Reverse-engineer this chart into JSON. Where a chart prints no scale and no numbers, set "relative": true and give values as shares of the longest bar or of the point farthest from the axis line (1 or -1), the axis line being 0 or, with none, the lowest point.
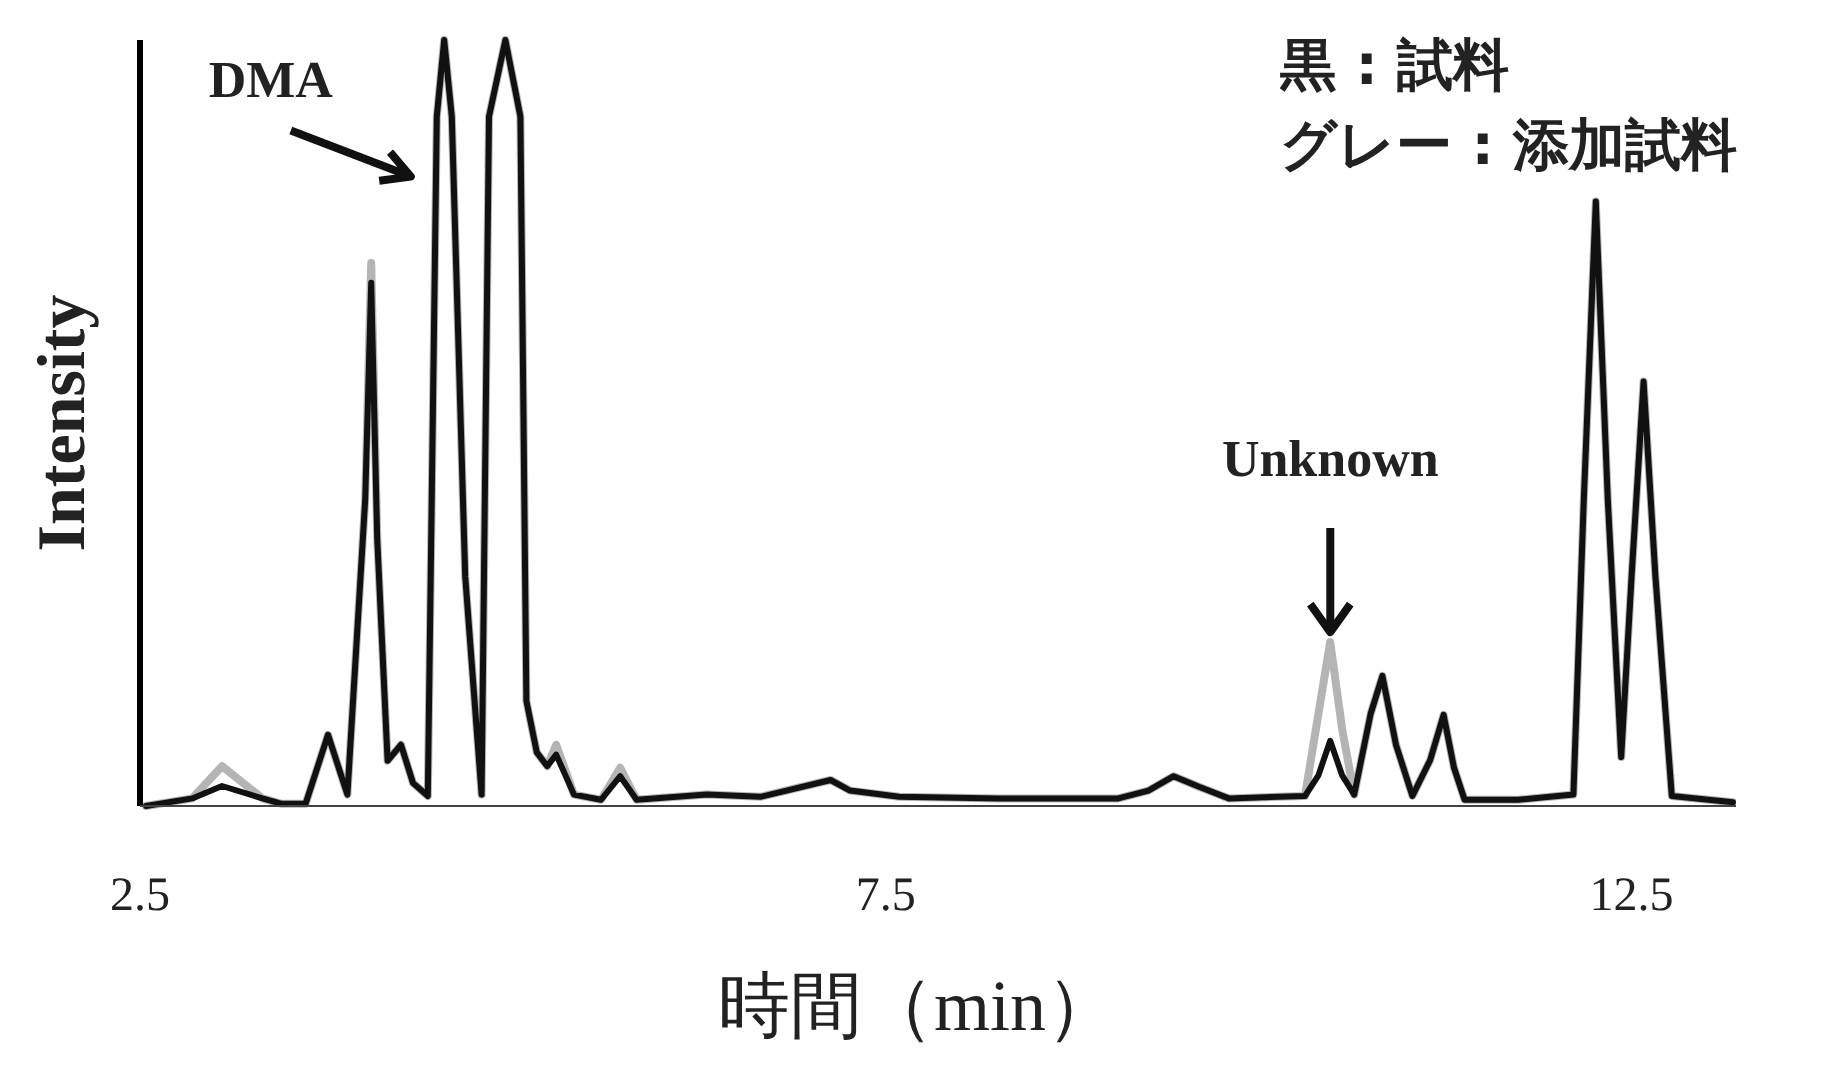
{
  "chart_data": {
    "type": "line",
    "relative": true,
    "xlabel": "時間（min）",
    "ylabel": "Intensity",
    "xlim": [
      2.5,
      13.2
    ],
    "xticks": [
      2.5,
      7.5,
      12.5
    ],
    "tick_labels": "x",
    "line_style": "solid",
    "annotations": [
      {
        "text": "DMA",
        "x": 4.49,
        "y": 0.9
      },
      {
        "text": "Unknown",
        "x": 10.48,
        "y": 0.214
      },
      "黒 : 試料",
      "グレー : 添加試料"
    ],
    "x": [
      2.54,
      2.85,
      3.05,
      3.32,
      3.45,
      3.61,
      3.76,
      3.89,
      4.01,
      4.05,
      4.09,
      4.16,
      4.25,
      4.33,
      4.43,
      4.49,
      4.54,
      4.59,
      4.68,
      4.79,
      4.84,
      4.95,
      5.05,
      5.09,
      5.16,
      5.23,
      5.29,
      5.41,
      5.59,
      5.72,
      5.83,
      6.3,
      6.66,
      7.13,
      7.26,
      7.59,
      8.26,
      9.06,
      9.26,
      9.43,
      9.6,
      9.8,
      10.31,
      10.4,
      10.48,
      10.56,
      10.64,
      10.75,
      10.83,
      10.92,
      11.03,
      11.15,
      11.24,
      11.31,
      11.38,
      11.74,
      12.11,
      12.18,
      12.26,
      12.34,
      12.43,
      12.5,
      12.58,
      12.66,
      12.77,
      13.18
    ],
    "series": [
      {
        "color": "#b4b4b4",
        "values": [
          0,
          0.01,
          0.052,
          0.01,
          0.003,
          0.003,
          0.093,
          0.015,
          0.4,
          0.709,
          0.35,
          0.059,
          0.08,
          0.03,
          0.013,
          0.9,
          1,
          0.9,
          0.3,
          0.015,
          0.9,
          1,
          0.9,
          0.137,
          0.07,
          0.052,
          0.08,
          0.015,
          0.008,
          0.05,
          0.008,
          0.015,
          0.012,
          0.034,
          0.02,
          0.012,
          0.01,
          0.01,
          0.02,
          0.039,
          0.025,
          0.01,
          0.013,
          0.12,
          0.214,
          0.1,
          0.015,
          0.12,
          0.17,
          0.08,
          0.013,
          0.06,
          0.119,
          0.05,
          0.008,
          0.008,
          0.015,
          0.4,
          0.789,
          0.4,
          0.064,
          0.3,
          0.554,
          0.3,
          0.013,
          0.005
        ]
      },
      {
        "color": "#111111",
        "values": [
          0,
          0.01,
          0.026,
          0.01,
          0.003,
          0.003,
          0.093,
          0.015,
          0.4,
          0.683,
          0.35,
          0.059,
          0.08,
          0.03,
          0.013,
          0.9,
          1,
          0.9,
          0.3,
          0.015,
          0.9,
          1,
          0.9,
          0.137,
          0.07,
          0.052,
          0.067,
          0.015,
          0.008,
          0.039,
          0.008,
          0.015,
          0.012,
          0.034,
          0.02,
          0.012,
          0.01,
          0.01,
          0.02,
          0.039,
          0.025,
          0.01,
          0.013,
          0.04,
          0.085,
          0.04,
          0.015,
          0.12,
          0.17,
          0.08,
          0.013,
          0.06,
          0.119,
          0.05,
          0.008,
          0.008,
          0.015,
          0.4,
          0.789,
          0.4,
          0.064,
          0.3,
          0.554,
          0.3,
          0.013,
          0.005
        ]
      }
    ]
  }
}
